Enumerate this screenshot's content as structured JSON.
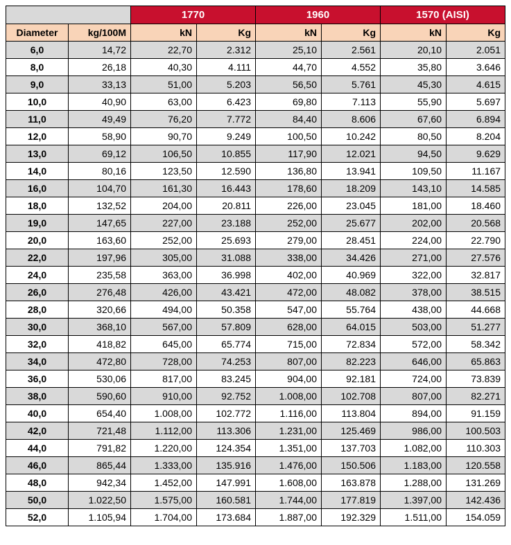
{
  "colors": {
    "header_bg": "#c8102e",
    "header_text": "#ffffff",
    "subheader_bg": "#f9d4b8",
    "band_a": "#d9d9d9",
    "band_b": "#ffffff",
    "border": "#000000"
  },
  "fonts": {
    "family": "Arial",
    "header_size_pt": 11,
    "body_size_pt": 10
  },
  "headers": {
    "groups": [
      "1770",
      "1960",
      "1570 (AISI)"
    ],
    "sub": {
      "diameter": "Diameter",
      "mass": "kg/100M",
      "kn": "kN",
      "kg": "Kg"
    }
  },
  "rows": [
    {
      "diameter": "6,0",
      "mass": "14,72",
      "g1_kn": "22,70",
      "g1_kg": "2.312",
      "g2_kn": "25,10",
      "g2_kg": "2.561",
      "g3_kn": "20,10",
      "g3_kg": "2.051"
    },
    {
      "diameter": "8,0",
      "mass": "26,18",
      "g1_kn": "40,30",
      "g1_kg": "4.111",
      "g2_kn": "44,70",
      "g2_kg": "4.552",
      "g3_kn": "35,80",
      "g3_kg": "3.646"
    },
    {
      "diameter": "9,0",
      "mass": "33,13",
      "g1_kn": "51,00",
      "g1_kg": "5.203",
      "g2_kn": "56,50",
      "g2_kg": "5.761",
      "g3_kn": "45,30",
      "g3_kg": "4.615"
    },
    {
      "diameter": "10,0",
      "mass": "40,90",
      "g1_kn": "63,00",
      "g1_kg": "6.423",
      "g2_kn": "69,80",
      "g2_kg": "7.113",
      "g3_kn": "55,90",
      "g3_kg": "5.697"
    },
    {
      "diameter": "11,0",
      "mass": "49,49",
      "g1_kn": "76,20",
      "g1_kg": "7.772",
      "g2_kn": "84,40",
      "g2_kg": "8.606",
      "g3_kn": "67,60",
      "g3_kg": "6.894"
    },
    {
      "diameter": "12,0",
      "mass": "58,90",
      "g1_kn": "90,70",
      "g1_kg": "9.249",
      "g2_kn": "100,50",
      "g2_kg": "10.242",
      "g3_kn": "80,50",
      "g3_kg": "8.204"
    },
    {
      "diameter": "13,0",
      "mass": "69,12",
      "g1_kn": "106,50",
      "g1_kg": "10.855",
      "g2_kn": "117,90",
      "g2_kg": "12.021",
      "g3_kn": "94,50",
      "g3_kg": "9.629"
    },
    {
      "diameter": "14,0",
      "mass": "80,16",
      "g1_kn": "123,50",
      "g1_kg": "12.590",
      "g2_kn": "136,80",
      "g2_kg": "13.941",
      "g3_kn": "109,50",
      "g3_kg": "11.167"
    },
    {
      "diameter": "16,0",
      "mass": "104,70",
      "g1_kn": "161,30",
      "g1_kg": "16.443",
      "g2_kn": "178,60",
      "g2_kg": "18.209",
      "g3_kn": "143,10",
      "g3_kg": "14.585"
    },
    {
      "diameter": "18,0",
      "mass": "132,52",
      "g1_kn": "204,00",
      "g1_kg": "20.811",
      "g2_kn": "226,00",
      "g2_kg": "23.045",
      "g3_kn": "181,00",
      "g3_kg": "18.460"
    },
    {
      "diameter": "19,0",
      "mass": "147,65",
      "g1_kn": "227,00",
      "g1_kg": "23.188",
      "g2_kn": "252,00",
      "g2_kg": "25.677",
      "g3_kn": "202,00",
      "g3_kg": "20.568"
    },
    {
      "diameter": "20,0",
      "mass": "163,60",
      "g1_kn": "252,00",
      "g1_kg": "25.693",
      "g2_kn": "279,00",
      "g2_kg": "28.451",
      "g3_kn": "224,00",
      "g3_kg": "22.790"
    },
    {
      "diameter": "22,0",
      "mass": "197,96",
      "g1_kn": "305,00",
      "g1_kg": "31.088",
      "g2_kn": "338,00",
      "g2_kg": "34.426",
      "g3_kn": "271,00",
      "g3_kg": "27.576"
    },
    {
      "diameter": "24,0",
      "mass": "235,58",
      "g1_kn": "363,00",
      "g1_kg": "36.998",
      "g2_kn": "402,00",
      "g2_kg": "40.969",
      "g3_kn": "322,00",
      "g3_kg": "32.817"
    },
    {
      "diameter": "26,0",
      "mass": "276,48",
      "g1_kn": "426,00",
      "g1_kg": "43.421",
      "g2_kn": "472,00",
      "g2_kg": "48.082",
      "g3_kn": "378,00",
      "g3_kg": "38.515"
    },
    {
      "diameter": "28,0",
      "mass": "320,66",
      "g1_kn": "494,00",
      "g1_kg": "50.358",
      "g2_kn": "547,00",
      "g2_kg": "55.764",
      "g3_kn": "438,00",
      "g3_kg": "44.668"
    },
    {
      "diameter": "30,0",
      "mass": "368,10",
      "g1_kn": "567,00",
      "g1_kg": "57.809",
      "g2_kn": "628,00",
      "g2_kg": "64.015",
      "g3_kn": "503,00",
      "g3_kg": "51.277"
    },
    {
      "diameter": "32,0",
      "mass": "418,82",
      "g1_kn": "645,00",
      "g1_kg": "65.774",
      "g2_kn": "715,00",
      "g2_kg": "72.834",
      "g3_kn": "572,00",
      "g3_kg": "58.342"
    },
    {
      "diameter": "34,0",
      "mass": "472,80",
      "g1_kn": "728,00",
      "g1_kg": "74.253",
      "g2_kn": "807,00",
      "g2_kg": "82.223",
      "g3_kn": "646,00",
      "g3_kg": "65.863"
    },
    {
      "diameter": "36,0",
      "mass": "530,06",
      "g1_kn": "817,00",
      "g1_kg": "83.245",
      "g2_kn": "904,00",
      "g2_kg": "92.181",
      "g3_kn": "724,00",
      "g3_kg": "73.839"
    },
    {
      "diameter": "38,0",
      "mass": "590,60",
      "g1_kn": "910,00",
      "g1_kg": "92.752",
      "g2_kn": "1.008,00",
      "g2_kg": "102.708",
      "g3_kn": "807,00",
      "g3_kg": "82.271"
    },
    {
      "diameter": "40,0",
      "mass": "654,40",
      "g1_kn": "1.008,00",
      "g1_kg": "102.772",
      "g2_kn": "1.116,00",
      "g2_kg": "113.804",
      "g3_kn": "894,00",
      "g3_kg": "91.159"
    },
    {
      "diameter": "42,0",
      "mass": "721,48",
      "g1_kn": "1.112,00",
      "g1_kg": "113.306",
      "g2_kn": "1.231,00",
      "g2_kg": "125.469",
      "g3_kn": "986,00",
      "g3_kg": "100.503"
    },
    {
      "diameter": "44,0",
      "mass": "791,82",
      "g1_kn": "1.220,00",
      "g1_kg": "124.354",
      "g2_kn": "1.351,00",
      "g2_kg": "137.703",
      "g3_kn": "1.082,00",
      "g3_kg": "110.303"
    },
    {
      "diameter": "46,0",
      "mass": "865,44",
      "g1_kn": "1.333,00",
      "g1_kg": "135.916",
      "g2_kn": "1.476,00",
      "g2_kg": "150.506",
      "g3_kn": "1.183,00",
      "g3_kg": "120.558"
    },
    {
      "diameter": "48,0",
      "mass": "942,34",
      "g1_kn": "1.452,00",
      "g1_kg": "147.991",
      "g2_kn": "1.608,00",
      "g2_kg": "163.878",
      "g3_kn": "1.288,00",
      "g3_kg": "131.269"
    },
    {
      "diameter": "50,0",
      "mass": "1.022,50",
      "g1_kn": "1.575,00",
      "g1_kg": "160.581",
      "g2_kn": "1.744,00",
      "g2_kg": "177.819",
      "g3_kn": "1.397,00",
      "g3_kg": "142.436"
    },
    {
      "diameter": "52,0",
      "mass": "1.105,94",
      "g1_kn": "1.704,00",
      "g1_kg": "173.684",
      "g2_kn": "1.887,00",
      "g2_kg": "192.329",
      "g3_kn": "1.511,00",
      "g3_kg": "154.059"
    }
  ]
}
